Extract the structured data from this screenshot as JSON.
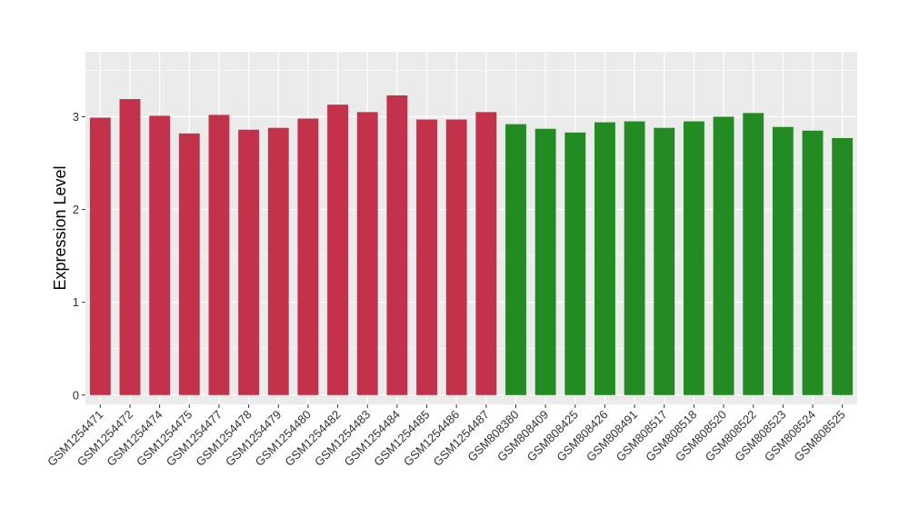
{
  "chart_data": {
    "type": "bar",
    "title": "",
    "xlabel": "",
    "ylabel": "Expression Level",
    "ylim": [
      -0.1,
      3.7
    ],
    "yticks": [
      0,
      1,
      2,
      3
    ],
    "grid": true,
    "legend": "none",
    "colors": {
      "group_a": "#C4314B",
      "group_b": "#228B22",
      "panel_bg": "#EBEBEB",
      "grid": "#FFFFFF"
    },
    "categories": [
      "GSM1254471",
      "GSM1254472",
      "GSM1254474",
      "GSM1254475",
      "GSM1254477",
      "GSM1254478",
      "GSM1254479",
      "GSM1254480",
      "GSM1254482",
      "GSM1254483",
      "GSM1254484",
      "GSM1254485",
      "GSM1254486",
      "GSM1254487",
      "GSM808380",
      "GSM808409",
      "GSM808425",
      "GSM808426",
      "GSM808491",
      "GSM808517",
      "GSM808518",
      "GSM808520",
      "GSM808522",
      "GSM808523",
      "GSM808524",
      "GSM808525"
    ],
    "values": [
      2.99,
      3.19,
      3.01,
      2.82,
      3.02,
      2.86,
      2.88,
      2.98,
      3.13,
      3.05,
      3.23,
      2.97,
      2.97,
      3.05,
      2.92,
      2.87,
      2.83,
      2.94,
      2.95,
      2.88,
      2.95,
      3.0,
      3.04,
      2.89,
      2.85,
      2.77
    ],
    "groups": [
      "group_a",
      "group_a",
      "group_a",
      "group_a",
      "group_a",
      "group_a",
      "group_a",
      "group_a",
      "group_a",
      "group_a",
      "group_a",
      "group_a",
      "group_a",
      "group_a",
      "group_b",
      "group_b",
      "group_b",
      "group_b",
      "group_b",
      "group_b",
      "group_b",
      "group_b",
      "group_b",
      "group_b",
      "group_b",
      "group_b"
    ]
  }
}
